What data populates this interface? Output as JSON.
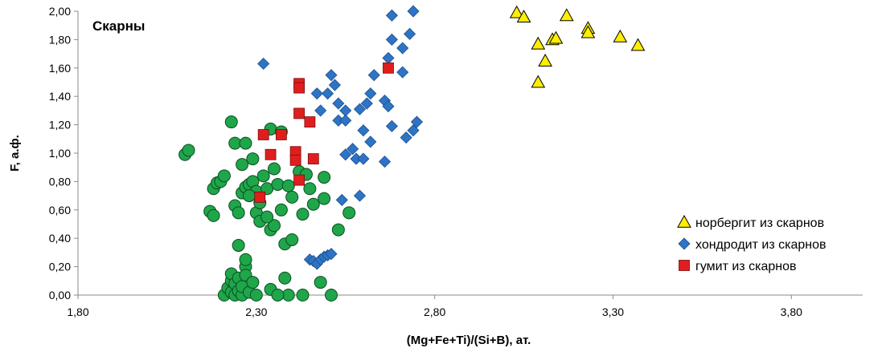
{
  "chart_data": {
    "type": "scatter",
    "title": "",
    "annotation": "Скарны",
    "xlabel": "(Mg+Fe+Ti)/(Si+B), ат.",
    "ylabel": "F, а.ф.",
    "xlim": [
      1.8,
      4.0
    ],
    "ylim": [
      0.0,
      2.0
    ],
    "x_ticks": [
      "1,80",
      "2,30",
      "2,80",
      "3,30",
      "3,80"
    ],
    "y_ticks": [
      "0,00",
      "0,20",
      "0,40",
      "0,60",
      "0,80",
      "1,00",
      "1,20",
      "1,40",
      "1,60",
      "1,80",
      "2,00"
    ],
    "grid": false,
    "legend_position": "bottom-right",
    "series": [
      {
        "name": "",
        "marker": "circle",
        "color": "#1fa64a",
        "points": [
          [
            2.1,
            0.99
          ],
          [
            2.11,
            1.02
          ],
          [
            2.17,
            0.59
          ],
          [
            2.18,
            0.56
          ],
          [
            2.18,
            0.75
          ],
          [
            2.19,
            0.79
          ],
          [
            2.2,
            0.8
          ],
          [
            2.21,
            0.84
          ],
          [
            2.21,
            0.0
          ],
          [
            2.22,
            0.05
          ],
          [
            2.23,
            0.1
          ],
          [
            2.23,
            0.15
          ],
          [
            2.23,
            0.02
          ],
          [
            2.24,
            0.08
          ],
          [
            2.24,
            0.0
          ],
          [
            2.25,
            0.12
          ],
          [
            2.25,
            0.03
          ],
          [
            2.26,
            0.0
          ],
          [
            2.26,
            0.06
          ],
          [
            2.27,
            0.2
          ],
          [
            2.27,
            0.25
          ],
          [
            2.27,
            0.14
          ],
          [
            2.28,
            0.02
          ],
          [
            2.29,
            0.09
          ],
          [
            2.3,
            0.0
          ],
          [
            2.24,
            0.63
          ],
          [
            2.25,
            0.58
          ],
          [
            2.26,
            0.72
          ],
          [
            2.27,
            0.76
          ],
          [
            2.28,
            0.78
          ],
          [
            2.29,
            0.8
          ],
          [
            2.3,
            0.73
          ],
          [
            2.3,
            0.58
          ],
          [
            2.31,
            0.52
          ],
          [
            2.32,
            0.84
          ],
          [
            2.33,
            0.75
          ],
          [
            2.34,
            0.46
          ],
          [
            2.35,
            0.49
          ],
          [
            2.36,
            0.78
          ],
          [
            2.23,
            1.22
          ],
          [
            2.24,
            1.07
          ],
          [
            2.26,
            0.92
          ],
          [
            2.27,
            1.07
          ],
          [
            2.29,
            0.96
          ],
          [
            2.33,
            0.55
          ],
          [
            2.34,
            1.17
          ],
          [
            2.35,
            0.89
          ],
          [
            2.37,
            1.15
          ],
          [
            2.37,
            0.6
          ],
          [
            2.38,
            0.36
          ],
          [
            2.39,
            0.77
          ],
          [
            2.4,
            0.39
          ],
          [
            2.43,
            0.0
          ],
          [
            2.42,
            0.87
          ],
          [
            2.43,
            0.57
          ],
          [
            2.44,
            0.85
          ],
          [
            2.45,
            0.75
          ],
          [
            2.46,
            0.64
          ],
          [
            2.48,
            0.09
          ],
          [
            2.49,
            0.68
          ],
          [
            2.49,
            0.83
          ],
          [
            2.51,
            0.0
          ],
          [
            2.53,
            0.46
          ],
          [
            2.56,
            0.58
          ],
          [
            2.34,
            0.04
          ],
          [
            2.38,
            0.12
          ],
          [
            2.39,
            0.0
          ],
          [
            2.36,
            0.0
          ],
          [
            2.25,
            0.35
          ],
          [
            2.28,
            0.7
          ],
          [
            2.31,
            0.65
          ],
          [
            2.4,
            0.69
          ]
        ]
      },
      {
        "name": "хондродит из скарнов",
        "marker": "diamond",
        "color": "#2e74c4",
        "points": [
          [
            2.32,
            1.63
          ],
          [
            2.45,
            0.25
          ],
          [
            2.46,
            0.24
          ],
          [
            2.47,
            0.22
          ],
          [
            2.48,
            0.25
          ],
          [
            2.49,
            0.27
          ],
          [
            2.5,
            0.28
          ],
          [
            2.51,
            0.29
          ],
          [
            2.48,
            1.3
          ],
          [
            2.5,
            1.42
          ],
          [
            2.51,
            1.55
          ],
          [
            2.52,
            1.48
          ],
          [
            2.53,
            1.23
          ],
          [
            2.55,
            1.3
          ],
          [
            2.53,
            1.35
          ],
          [
            2.54,
            0.67
          ],
          [
            2.55,
            0.99
          ],
          [
            2.57,
            1.03
          ],
          [
            2.58,
            0.96
          ],
          [
            2.59,
            1.31
          ],
          [
            2.6,
            0.96
          ],
          [
            2.6,
            1.16
          ],
          [
            2.61,
            1.35
          ],
          [
            2.62,
            1.08
          ],
          [
            2.62,
            1.42
          ],
          [
            2.63,
            1.55
          ],
          [
            2.59,
            0.7
          ],
          [
            2.66,
            0.94
          ],
          [
            2.66,
            1.37
          ],
          [
            2.67,
            1.33
          ],
          [
            2.67,
            1.67
          ],
          [
            2.68,
            1.19
          ],
          [
            2.68,
            1.97
          ],
          [
            2.68,
            1.8
          ],
          [
            2.71,
            1.57
          ],
          [
            2.71,
            1.74
          ],
          [
            2.72,
            1.11
          ],
          [
            2.73,
            1.84
          ],
          [
            2.74,
            1.16
          ],
          [
            2.75,
            1.22
          ],
          [
            2.74,
            2.0
          ],
          [
            2.55,
            1.23
          ],
          [
            2.47,
            1.42
          ]
        ]
      },
      {
        "name": "гумит из скарнов",
        "marker": "square",
        "color": "#e01e1e",
        "points": [
          [
            2.31,
            0.69
          ],
          [
            2.32,
            1.13
          ],
          [
            2.34,
            0.99
          ],
          [
            2.37,
            1.13
          ],
          [
            2.41,
            1.01
          ],
          [
            2.41,
            0.95
          ],
          [
            2.42,
            0.81
          ],
          [
            2.42,
            1.28
          ],
          [
            2.42,
            1.49
          ],
          [
            2.42,
            1.46
          ],
          [
            2.45,
            1.22
          ],
          [
            2.46,
            0.96
          ],
          [
            2.67,
            1.6
          ]
        ]
      },
      {
        "name": "норбергит из скарнов",
        "marker": "triangle",
        "color": "#ffee00",
        "points": [
          [
            3.03,
            1.99
          ],
          [
            3.05,
            1.96
          ],
          [
            3.09,
            1.77
          ],
          [
            3.09,
            1.5
          ],
          [
            3.11,
            1.65
          ],
          [
            3.13,
            1.8
          ],
          [
            3.14,
            1.81
          ],
          [
            3.17,
            1.97
          ],
          [
            3.23,
            1.88
          ],
          [
            3.23,
            1.85
          ],
          [
            3.32,
            1.82
          ],
          [
            3.37,
            1.76
          ]
        ]
      }
    ],
    "legend": [
      {
        "label": "норбергит из скарнов",
        "marker": "triangle",
        "color": "#ffee00"
      },
      {
        "label": "хондродит из скарнов",
        "marker": "diamond",
        "color": "#2e74c4"
      },
      {
        "label": "гумит из скарнов",
        "marker": "square",
        "color": "#e01e1e"
      }
    ]
  }
}
